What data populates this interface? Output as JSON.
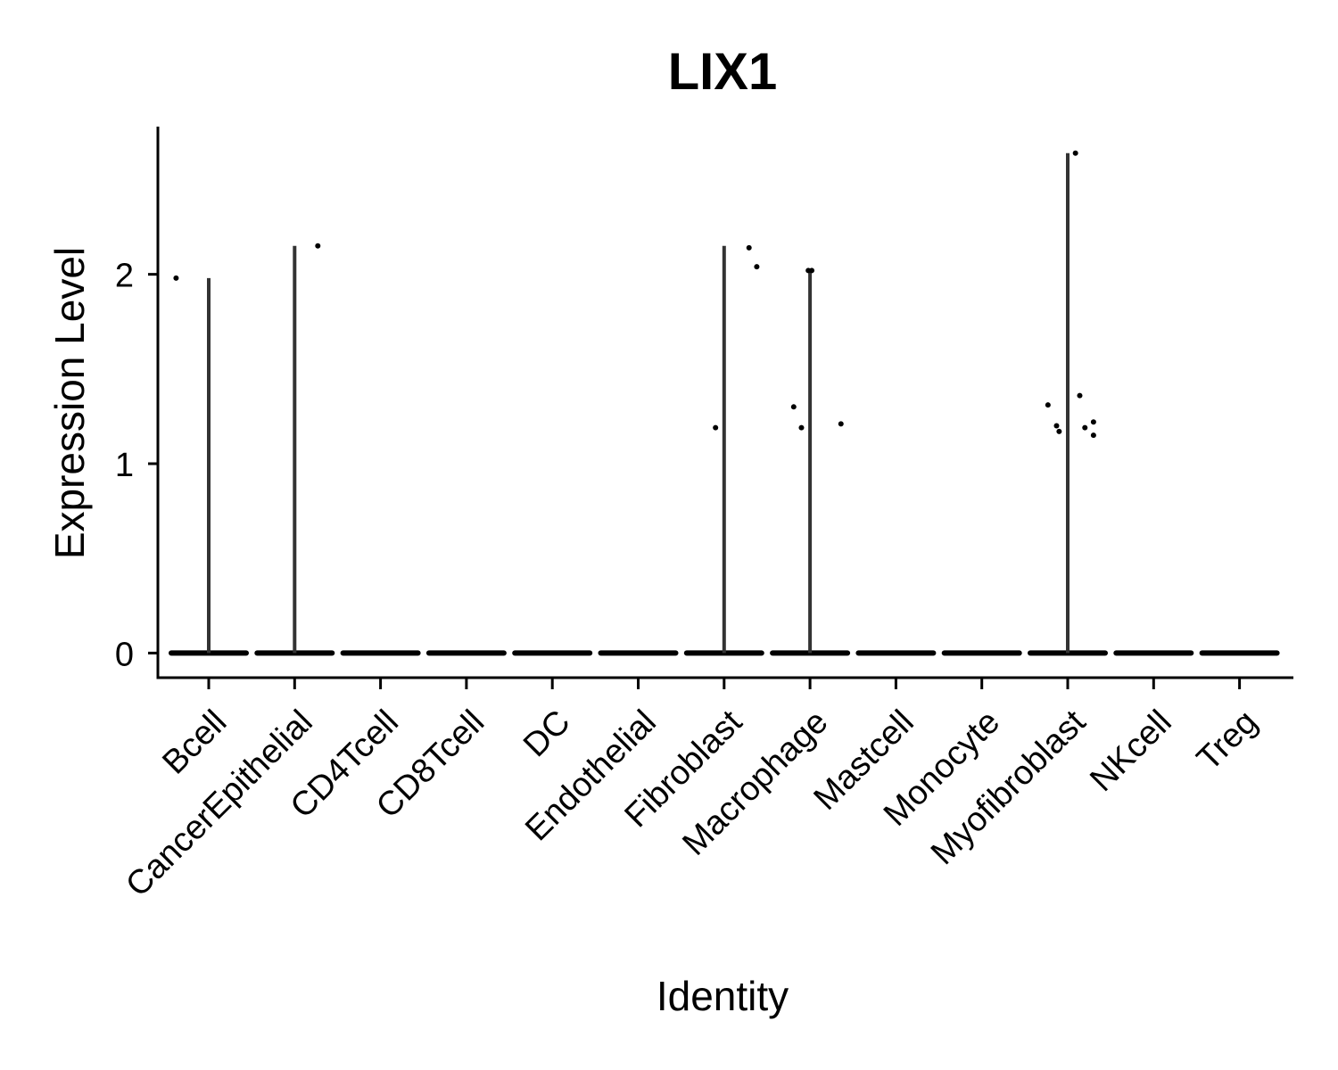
{
  "chart_data": {
    "type": "violin",
    "title": "LIX1",
    "xlabel": "Identity",
    "ylabel": "Expression Level",
    "ylim": [
      -0.13,
      2.78
    ],
    "yticks": [
      0,
      1,
      2
    ],
    "grid": false,
    "legend": "none",
    "categories": [
      "Bcell",
      "CancerEpithelial",
      "CD4Tcell",
      "CD8Tcell",
      "DC",
      "Endothelial",
      "Fibroblast",
      "Macrophage",
      "Mastcell",
      "Monocyte",
      "Myofibroblast",
      "NKcell",
      "Treg"
    ],
    "violin_max": [
      1.98,
      2.15,
      0,
      0,
      0,
      0,
      2.15,
      2.02,
      0,
      0,
      2.64,
      0,
      0
    ],
    "points": [
      {
        "category": "Bcell",
        "jitter": -0.38,
        "y": 1.98
      },
      {
        "category": "CancerEpithelial",
        "jitter": 0.27,
        "y": 2.15
      },
      {
        "category": "Fibroblast",
        "jitter": -0.1,
        "y": 1.19
      },
      {
        "category": "Fibroblast",
        "jitter": 0.29,
        "y": 2.14
      },
      {
        "category": "Fibroblast",
        "jitter": 0.38,
        "y": 2.04
      },
      {
        "category": "Macrophage",
        "jitter": -0.19,
        "y": 1.3
      },
      {
        "category": "Macrophage",
        "jitter": -0.1,
        "y": 1.19
      },
      {
        "category": "Macrophage",
        "jitter": -0.02,
        "y": 2.02
      },
      {
        "category": "Macrophage",
        "jitter": 0.02,
        "y": 2.02
      },
      {
        "category": "Macrophage",
        "jitter": 0.36,
        "y": 1.21
      },
      {
        "category": "Myofibroblast",
        "jitter": -0.23,
        "y": 1.31
      },
      {
        "category": "Myofibroblast",
        "jitter": -0.13,
        "y": 1.2
      },
      {
        "category": "Myofibroblast",
        "jitter": -0.1,
        "y": 1.17
      },
      {
        "category": "Myofibroblast",
        "jitter": 0.09,
        "y": 2.64
      },
      {
        "category": "Myofibroblast",
        "jitter": 0.14,
        "y": 1.36
      },
      {
        "category": "Myofibroblast",
        "jitter": 0.2,
        "y": 1.19
      },
      {
        "category": "Myofibroblast",
        "jitter": 0.3,
        "y": 1.22
      },
      {
        "category": "Myofibroblast",
        "jitter": 0.3,
        "y": 1.15
      }
    ]
  }
}
